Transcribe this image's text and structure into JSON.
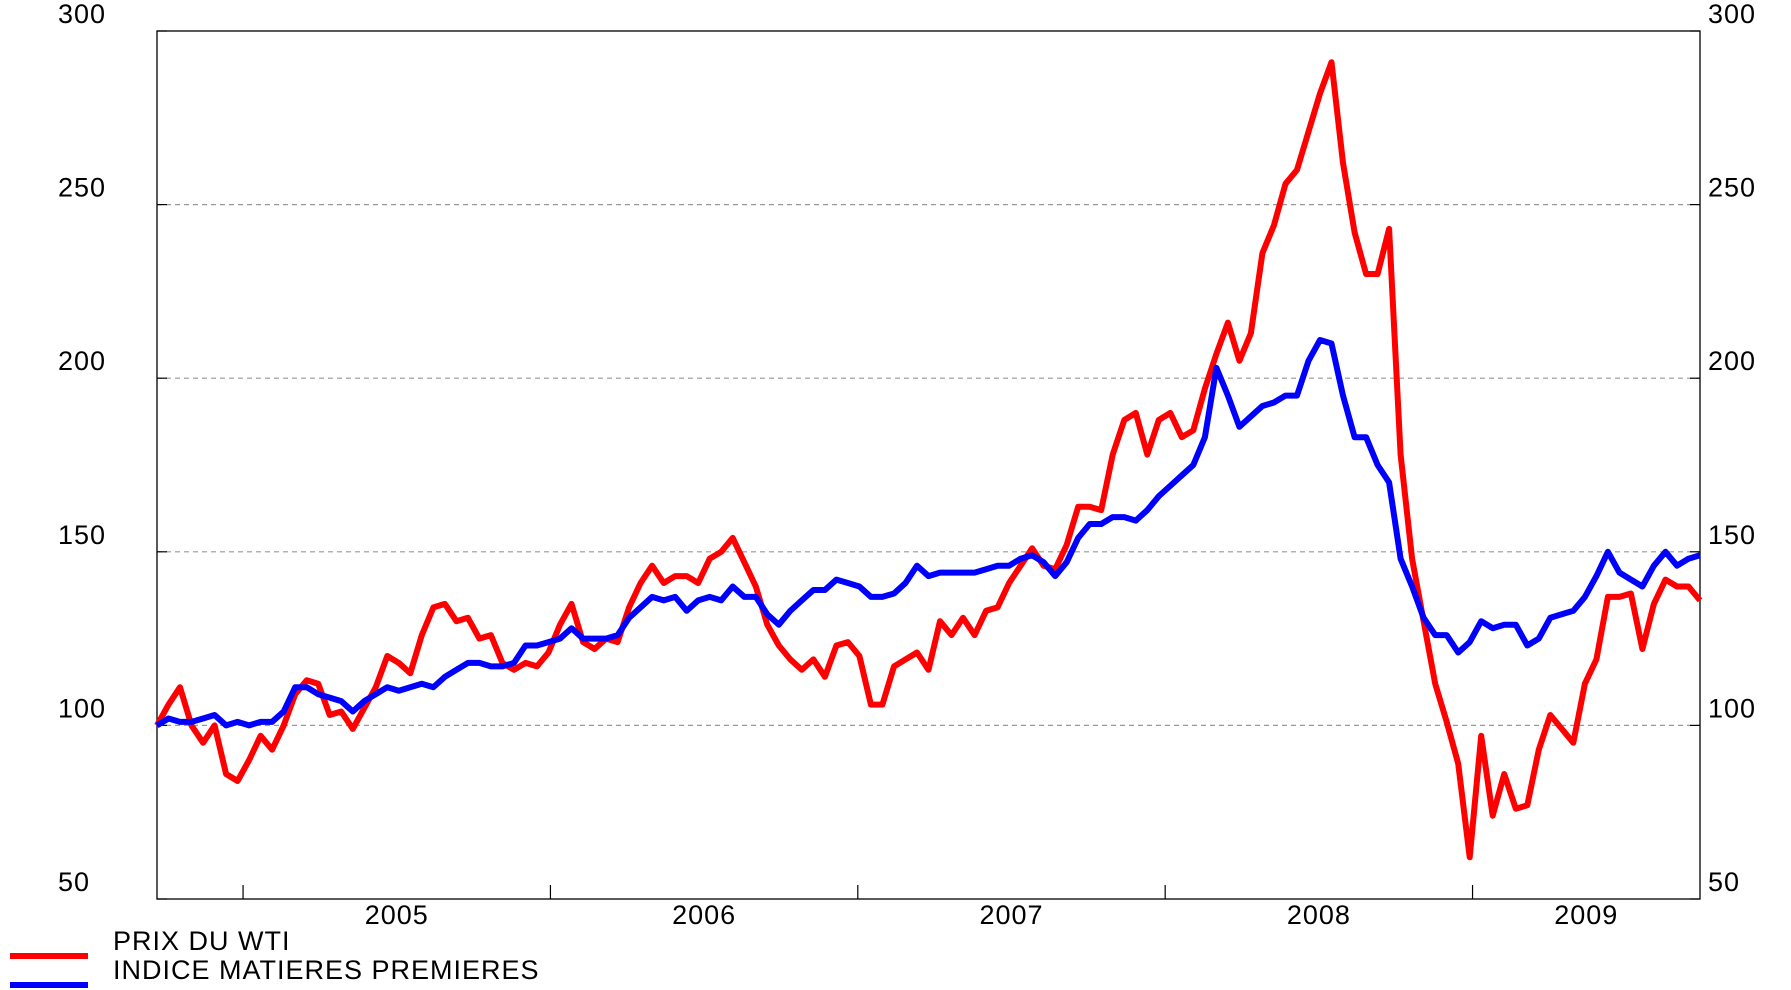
{
  "chart_data": {
    "type": "line",
    "xlim": [
      2004.72,
      2009.74
    ],
    "xticks": [
      {
        "value": 2005,
        "label": "2005"
      },
      {
        "value": 2006,
        "label": "2006"
      },
      {
        "value": 2007,
        "label": "2007"
      },
      {
        "value": 2008,
        "label": "2008"
      },
      {
        "value": 2009,
        "label": "2009"
      }
    ],
    "ylim": [
      50,
      300
    ],
    "yticks": [
      50,
      100,
      150,
      200,
      250,
      300
    ],
    "y2lim": [
      50,
      300
    ],
    "y2ticks": [
      50,
      100,
      150,
      200,
      250,
      300
    ],
    "grid": true,
    "legend": "bottom-left",
    "series": [
      {
        "name": "PRIX DU WTI",
        "color": "#ff0000",
        "values": [
          100,
          106,
          111,
          100,
          95,
          100,
          86,
          84,
          90,
          97,
          93,
          100,
          109,
          113,
          112,
          103,
          104,
          99,
          105,
          111,
          120,
          118,
          115,
          126,
          134,
          135,
          130,
          131,
          125,
          126,
          118,
          116,
          118,
          117,
          121,
          129,
          135,
          124,
          122,
          125,
          124,
          134,
          141,
          146,
          141,
          143,
          143,
          141,
          148,
          150,
          154,
          147,
          140,
          129,
          123,
          119,
          116,
          119,
          114,
          123,
          124,
          120,
          106,
          106,
          117,
          119,
          121,
          116,
          130,
          126,
          131,
          126,
          133,
          134,
          141,
          146,
          151,
          146,
          145,
          152,
          163,
          163,
          162,
          178,
          188,
          190,
          178,
          188,
          190,
          183,
          185,
          197,
          207,
          216,
          205,
          213,
          236,
          244,
          256,
          260,
          271,
          282,
          291,
          262,
          242,
          230,
          230,
          243,
          178,
          148,
          130,
          112,
          101,
          89,
          62,
          97,
          74,
          86,
          76,
          77,
          93,
          103,
          99,
          95,
          112,
          119,
          137,
          137,
          138,
          122,
          135,
          142,
          140,
          140,
          136
        ]
      },
      {
        "name": "INDICE MATIERES PREMIERES",
        "color": "#0000ff",
        "values": [
          100,
          102,
          101,
          101,
          102,
          103,
          100,
          101,
          100,
          101,
          101,
          104,
          111,
          111,
          109,
          108,
          107,
          104,
          107,
          109,
          111,
          110,
          111,
          112,
          111,
          114,
          116,
          118,
          118,
          117,
          117,
          118,
          123,
          123,
          124,
          125,
          128,
          125,
          125,
          125,
          126,
          131,
          134,
          137,
          136,
          137,
          133,
          136,
          137,
          136,
          140,
          137,
          137,
          132,
          129,
          133,
          136,
          139,
          139,
          142,
          141,
          140,
          137,
          137,
          138,
          141,
          146,
          143,
          144,
          144,
          144,
          144,
          145,
          146,
          146,
          148,
          149,
          147,
          143,
          147,
          154,
          158,
          158,
          160,
          160,
          159,
          162,
          166,
          169,
          172,
          175,
          183,
          203,
          195,
          186,
          189,
          192,
          193,
          195,
          195,
          205,
          211,
          210,
          195,
          183,
          183,
          175,
          170,
          148,
          140,
          131,
          126,
          126,
          121,
          124,
          130,
          128,
          129,
          129,
          123,
          125,
          131,
          132,
          133,
          137,
          143,
          150,
          144,
          142,
          140,
          146,
          150,
          146,
          148,
          149
        ]
      }
    ]
  }
}
